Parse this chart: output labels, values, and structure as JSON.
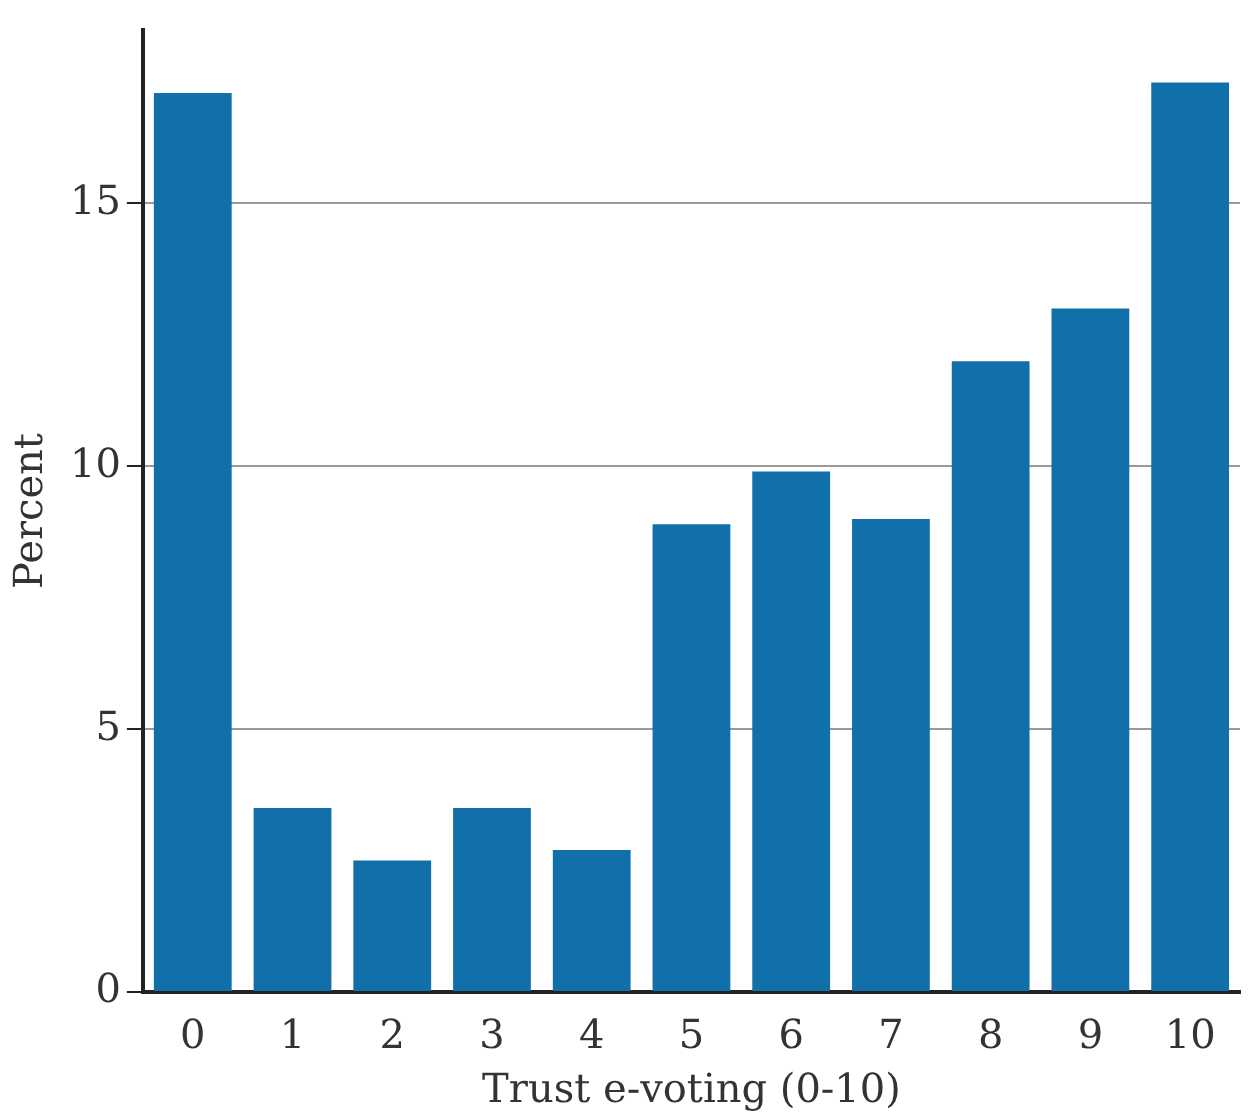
{
  "chart_data": {
    "type": "bar",
    "xlabel": "Trust e-voting (0-10)",
    "ylabel": "Percent",
    "categories": [
      "0",
      "1",
      "2",
      "3",
      "4",
      "5",
      "6",
      "7",
      "8",
      "9",
      "10"
    ],
    "values": [
      17.1,
      3.5,
      2.5,
      3.5,
      2.7,
      8.9,
      9.9,
      9.0,
      12.0,
      13.0,
      17.3
    ],
    "color": "#1170aa",
    "ylim": [
      0,
      18.3
    ],
    "yticks": [
      0,
      5,
      10,
      15
    ],
    "grid": "y",
    "legend": false
  }
}
